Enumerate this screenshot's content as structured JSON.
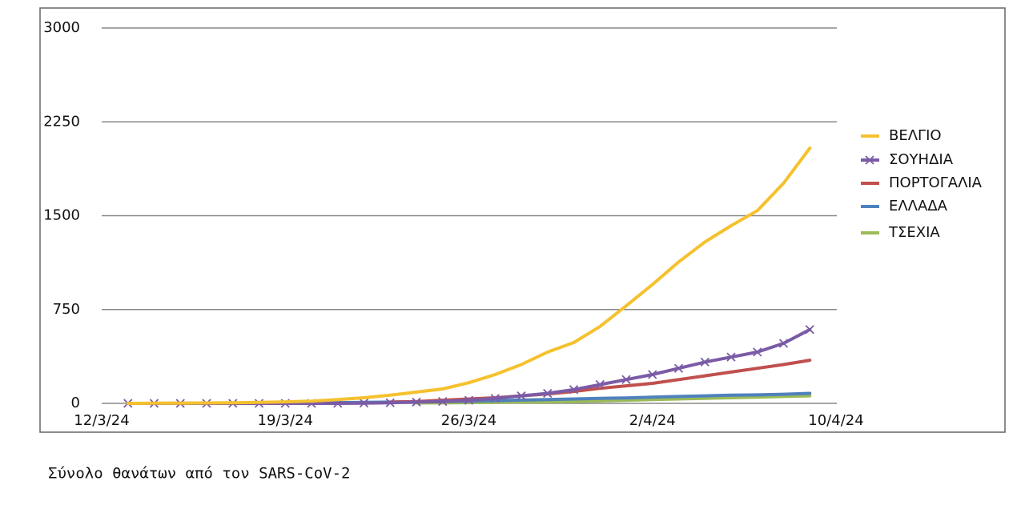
{
  "chart_data": {
    "type": "line",
    "caption": "Σύνολο θανάτων από τον SARS-CoV-2",
    "categories": [
      "12/3/24",
      null,
      null,
      null,
      null,
      null,
      null,
      "19/3/24",
      null,
      null,
      null,
      null,
      null,
      null,
      "26/3/24",
      null,
      null,
      null,
      null,
      null,
      null,
      "2/4/24",
      null,
      null,
      null,
      null,
      null,
      null,
      "10/4/24"
    ],
    "ylim": [
      0,
      3000
    ],
    "yticks": [
      0,
      750,
      1500,
      2250,
      3000
    ],
    "grid": true,
    "legend": "right",
    "series": [
      {
        "name": "ΒΕΛΓΙΟ",
        "color": "#f5c12e",
        "values": [
          null,
          0,
          1,
          2,
          3,
          5,
          8,
          12,
          18,
          30,
          45,
          65,
          90,
          115,
          165,
          230,
          310,
          410,
          486,
          615,
          780,
          950,
          1130,
          1290,
          1420,
          1540,
          1760,
          2040,
          null
        ]
      },
      {
        "name": "ΣΟΥΗΔΙΑ",
        "color": "#7b5ba6",
        "marker": "x",
        "values": [
          null,
          0,
          0,
          0,
          0,
          0,
          0,
          0,
          0,
          0,
          2,
          5,
          10,
          15,
          25,
          40,
          60,
          80,
          110,
          150,
          190,
          230,
          280,
          330,
          370,
          410,
          480,
          590,
          null
        ]
      },
      {
        "name": "ΠΟΡΤΟΓΑΛΙΑ",
        "color": "#c0504d",
        "values": [
          null,
          null,
          null,
          null,
          null,
          null,
          null,
          null,
          null,
          null,
          null,
          10,
          15,
          25,
          35,
          45,
          60,
          75,
          95,
          120,
          140,
          160,
          190,
          220,
          250,
          280,
          310,
          345,
          null
        ]
      },
      {
        "name": "ΕΛΛΑΔΑ",
        "color": "#4f81bd",
        "values": [
          null,
          0,
          0,
          1,
          1,
          2,
          3,
          4,
          5,
          6,
          8,
          10,
          12,
          15,
          18,
          22,
          26,
          30,
          35,
          40,
          43,
          50,
          55,
          60,
          65,
          68,
          73,
          80,
          null
        ]
      },
      {
        "name": "ΤΣΕΧΙΑ",
        "color": "#9bbb59",
        "values": [
          null,
          null,
          null,
          null,
          null,
          null,
          null,
          null,
          null,
          null,
          null,
          null,
          3,
          4,
          6,
          8,
          10,
          12,
          15,
          20,
          25,
          30,
          35,
          40,
          45,
          50,
          55,
          60,
          null
        ]
      }
    ]
  }
}
